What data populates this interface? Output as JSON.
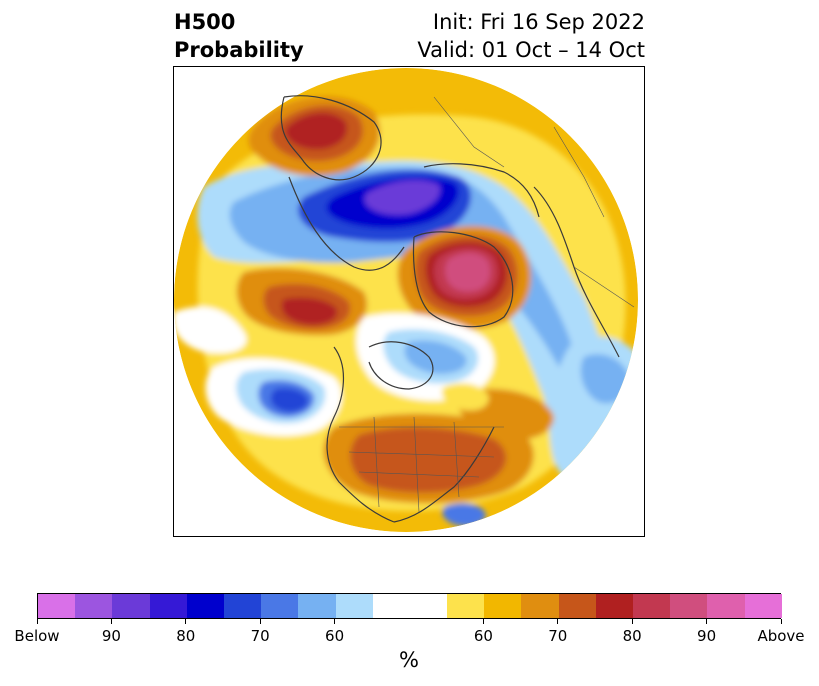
{
  "title": {
    "left_line1": "H500",
    "left_line2": "Probability",
    "right_line1": "Init: Fri 16 Sep 2022",
    "right_line2": "Valid: 01 Oct – 14 Oct"
  },
  "colorbar": {
    "unit": "%",
    "colors": [
      "#d970e8",
      "#9c55e0",
      "#6b3ad8",
      "#3519d6",
      "#0000cd",
      "#2244d6",
      "#4a78e6",
      "#76b1f2",
      "#addcfb",
      "#ffffff",
      "#ffffff",
      "#fde24c",
      "#f2b700",
      "#e08e10",
      "#c6561a",
      "#b02020",
      "#c23850",
      "#d04e7e",
      "#df60ad",
      "#e66fd8"
    ],
    "tick_labels": [
      "Below",
      "90",
      "80",
      "70",
      "60",
      "60",
      "70",
      "80",
      "90",
      "Above"
    ]
  },
  "map": {
    "projection": "north-polar-stereographic",
    "legend_placement": "bottom"
  }
}
